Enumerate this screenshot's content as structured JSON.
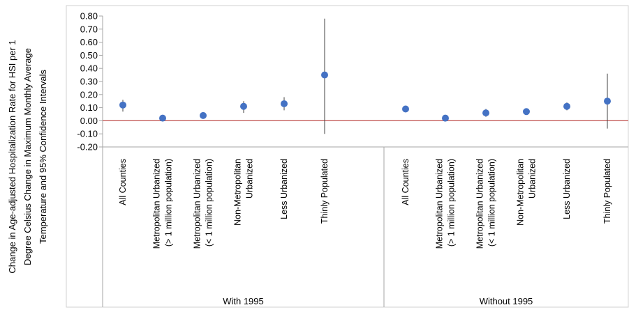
{
  "chart_data": {
    "type": "scatter",
    "title": "",
    "ylabel": [
      "Change in Age-adjusted Hospitalization Rate for HSI per 1",
      "Degree Celsius Change in Maximum Monthly Average",
      "Temperature and 95% Confidence Intervals"
    ],
    "ylim": [
      -0.2,
      0.8
    ],
    "yticks": [
      "0.80",
      "0.70",
      "0.60",
      "0.50",
      "0.40",
      "0.30",
      "0.20",
      "0.10",
      "0.00",
      "-0.10",
      "-0.20"
    ],
    "reference_line": {
      "y": 0.0,
      "color": "#c0504d"
    },
    "marker_color": "#4472c4",
    "errorbar_color": "#404040",
    "grid": false,
    "legend": "none",
    "groups": [
      {
        "label": "With 1995",
        "points": [
          {
            "category": [
              "All Counties"
            ],
            "value": 0.12,
            "ci_low": 0.07,
            "ci_high": 0.16
          },
          {
            "category": [
              "Metropolitan Urbanized",
              "(> 1 million population)"
            ],
            "value": 0.02,
            "ci_low": 0.01,
            "ci_high": 0.03
          },
          {
            "category": [
              "Metropolitan Urbanized",
              "(< 1 million population)"
            ],
            "value": 0.04,
            "ci_low": 0.02,
            "ci_high": 0.06
          },
          {
            "category": [
              "Non-Metropolitan",
              "Urbanized"
            ],
            "value": 0.11,
            "ci_low": 0.06,
            "ci_high": 0.15
          },
          {
            "category": [
              "Less Urbanized"
            ],
            "value": 0.13,
            "ci_low": 0.08,
            "ci_high": 0.18
          },
          {
            "category": [
              "Thinly Populated"
            ],
            "value": 0.35,
            "ci_low": -0.1,
            "ci_high": 0.78
          }
        ]
      },
      {
        "label": "Without 1995",
        "points": [
          {
            "category": [
              "All Counties"
            ],
            "value": 0.09,
            "ci_low": 0.07,
            "ci_high": 0.11
          },
          {
            "category": [
              "Metropolitan Urbanized",
              "(> 1 million population)"
            ],
            "value": 0.02,
            "ci_low": 0.01,
            "ci_high": 0.03
          },
          {
            "category": [
              "Metropolitan Urbanized",
              "(< 1 million population)"
            ],
            "value": 0.06,
            "ci_low": 0.03,
            "ci_high": 0.09
          },
          {
            "category": [
              "Non-Metropolitan",
              "Urbanized"
            ],
            "value": 0.07,
            "ci_low": 0.05,
            "ci_high": 0.09
          },
          {
            "category": [
              "Less Urbanized"
            ],
            "value": 0.11,
            "ci_low": 0.08,
            "ci_high": 0.14
          },
          {
            "category": [
              "Thinly Populated"
            ],
            "value": 0.15,
            "ci_low": -0.06,
            "ci_high": 0.36
          }
        ]
      }
    ]
  }
}
